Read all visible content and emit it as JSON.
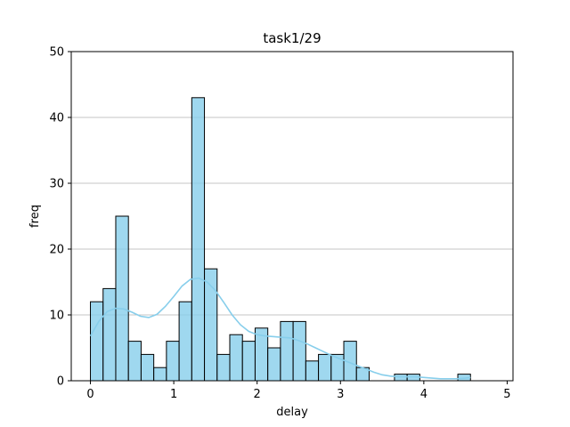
{
  "chart_data": {
    "type": "bar",
    "title": "task1/29",
    "xlabel": "delay",
    "ylabel": "freq",
    "xlim": [
      -0.23,
      5.07
    ],
    "ylim": [
      0,
      50
    ],
    "xticks": [
      0,
      1,
      2,
      3,
      4,
      5
    ],
    "yticks": [
      0,
      10,
      20,
      30,
      40,
      50
    ],
    "grid": "horizontal",
    "bar_color": "#87ceeb",
    "edge_color": "#000000",
    "kde_color": "#87ceeb",
    "bins": [
      {
        "x0": 0.0,
        "x1": 0.152,
        "count": 12
      },
      {
        "x0": 0.152,
        "x1": 0.304,
        "count": 14
      },
      {
        "x0": 0.304,
        "x1": 0.456,
        "count": 25
      },
      {
        "x0": 0.456,
        "x1": 0.608,
        "count": 6
      },
      {
        "x0": 0.608,
        "x1": 0.76,
        "count": 4
      },
      {
        "x0": 0.76,
        "x1": 0.912,
        "count": 2
      },
      {
        "x0": 0.912,
        "x1": 1.064,
        "count": 6
      },
      {
        "x0": 1.064,
        "x1": 1.216,
        "count": 12
      },
      {
        "x0": 1.216,
        "x1": 1.368,
        "count": 43
      },
      {
        "x0": 1.368,
        "x1": 1.52,
        "count": 17
      },
      {
        "x0": 1.52,
        "x1": 1.672,
        "count": 4
      },
      {
        "x0": 1.672,
        "x1": 1.824,
        "count": 7
      },
      {
        "x0": 1.824,
        "x1": 1.976,
        "count": 6
      },
      {
        "x0": 1.976,
        "x1": 2.128,
        "count": 8
      },
      {
        "x0": 2.128,
        "x1": 2.28,
        "count": 5
      },
      {
        "x0": 2.28,
        "x1": 2.432,
        "count": 9
      },
      {
        "x0": 2.432,
        "x1": 2.584,
        "count": 9
      },
      {
        "x0": 2.584,
        "x1": 2.736,
        "count": 3
      },
      {
        "x0": 2.736,
        "x1": 2.888,
        "count": 4
      },
      {
        "x0": 2.888,
        "x1": 3.04,
        "count": 4
      },
      {
        "x0": 3.04,
        "x1": 3.192,
        "count": 6
      },
      {
        "x0": 3.192,
        "x1": 3.344,
        "count": 2
      },
      {
        "x0": 3.344,
        "x1": 3.496,
        "count": 0
      },
      {
        "x0": 3.496,
        "x1": 3.648,
        "count": 0
      },
      {
        "x0": 3.648,
        "x1": 3.8,
        "count": 1
      },
      {
        "x0": 3.8,
        "x1": 3.952,
        "count": 1
      },
      {
        "x0": 3.952,
        "x1": 4.104,
        "count": 0
      },
      {
        "x0": 4.104,
        "x1": 4.256,
        "count": 0
      },
      {
        "x0": 4.256,
        "x1": 4.408,
        "count": 0
      },
      {
        "x0": 4.408,
        "x1": 4.56,
        "count": 1
      }
    ],
    "kde": {
      "x": [
        0.0,
        0.1,
        0.2,
        0.3,
        0.4,
        0.5,
        0.6,
        0.7,
        0.8,
        0.9,
        1.0,
        1.1,
        1.2,
        1.3,
        1.4,
        1.5,
        1.6,
        1.7,
        1.8,
        1.9,
        2.0,
        2.1,
        2.2,
        2.3,
        2.4,
        2.5,
        2.6,
        2.7,
        2.8,
        2.9,
        3.0,
        3.1,
        3.2,
        3.3,
        3.4,
        3.5,
        3.6,
        3.7,
        3.8,
        3.9,
        4.0,
        4.1,
        4.2,
        4.3,
        4.4,
        4.5,
        4.56
      ],
      "y": [
        6.8,
        9.0,
        10.5,
        11.0,
        10.9,
        10.4,
        9.8,
        9.6,
        10.1,
        11.3,
        12.8,
        14.4,
        15.4,
        15.6,
        15.0,
        13.7,
        11.9,
        10.0,
        8.5,
        7.5,
        7.0,
        6.8,
        6.7,
        6.6,
        6.5,
        6.1,
        5.6,
        5.0,
        4.4,
        3.8,
        3.3,
        2.8,
        2.3,
        1.8,
        1.3,
        0.9,
        0.7,
        0.6,
        0.6,
        0.6,
        0.5,
        0.4,
        0.3,
        0.3,
        0.3,
        0.4,
        0.5
      ]
    }
  }
}
